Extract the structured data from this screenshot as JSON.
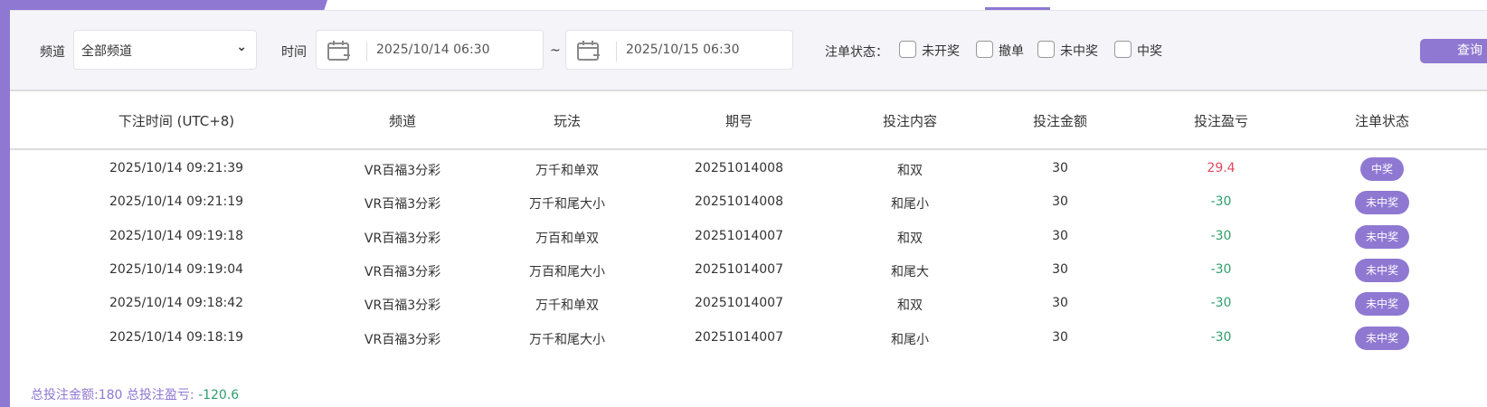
{
  "filter": {
    "channel_label": "频道",
    "channel_value": "全部频道",
    "time_label": "时间",
    "start": "2025/10/14 06:30",
    "tilde": "~",
    "end": "2025/10/15 06:30",
    "status_label": "注单状态：",
    "statuses": [
      "未开奖",
      "撤单",
      "未中奖",
      "中奖"
    ],
    "query": "查询"
  },
  "table": {
    "headers": [
      "下注时间 (UTC+8)",
      "频道",
      "玩法",
      "期号",
      "投注内容",
      "投注金额",
      "投注盈亏",
      "注单状态"
    ],
    "rows": [
      [
        "2025/10/14 09:21:39",
        "VR百福3分彩",
        "万千和单双",
        "20251014008",
        "和双",
        "30",
        "29.4",
        "中奖"
      ],
      [
        "2025/10/14 09:21:19",
        "VR百福3分彩",
        "万千和尾大小",
        "20251014008",
        "和尾小",
        "30",
        "-30",
        "未中奖"
      ],
      [
        "2025/10/14 09:19:18",
        "VR百福3分彩",
        "万百和单双",
        "20251014007",
        "和双",
        "30",
        "-30",
        "未中奖"
      ],
      [
        "2025/10/14 09:19:04",
        "VR百福3分彩",
        "万百和尾大小",
        "20251014007",
        "和尾大",
        "30",
        "-30",
        "未中奖"
      ],
      [
        "2025/10/14 09:18:42",
        "VR百福3分彩",
        "万千和单双",
        "20251014007",
        "和双",
        "30",
        "-30",
        "未中奖"
      ],
      [
        "2025/10/14 09:18:19",
        "VR百福3分彩",
        "万千和尾大小",
        "20251014007",
        "和尾小",
        "30",
        "-30",
        "未中奖"
      ]
    ]
  },
  "summary": {
    "text": "总投注金额:180 总投注盈亏: ",
    "profit": "-120.6"
  },
  "colors": {
    "accent": "#8f78d2",
    "loss": "#2f9e6e",
    "win": "#e04a5e"
  }
}
